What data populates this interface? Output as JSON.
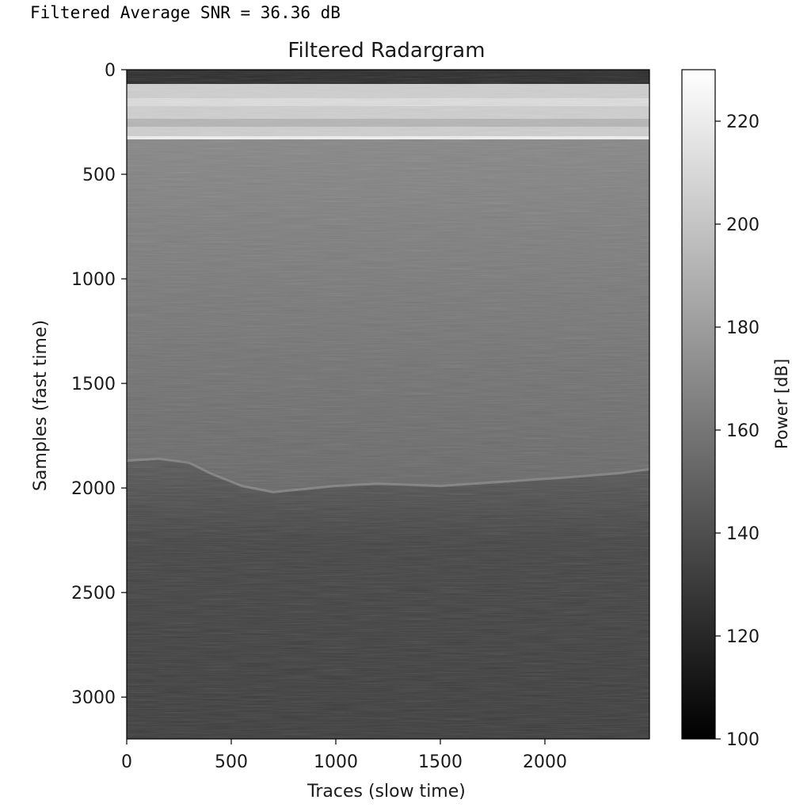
{
  "console": {
    "output_text": "Filtered Average SNR = 36.36 dB"
  },
  "chart_data": {
    "type": "heatmap",
    "title": "Filtered Radargram",
    "xlabel": "Traces (slow time)",
    "ylabel": "Samples (fast time)",
    "xlim": [
      0,
      2500
    ],
    "ylim": [
      3200,
      0
    ],
    "x_ticks": [
      0,
      500,
      1000,
      1500,
      2000
    ],
    "y_ticks": [
      0,
      500,
      1000,
      1500,
      2000,
      2500,
      3000
    ],
    "colormap": "gray",
    "colorbar": {
      "label": "Power [dB]",
      "range": [
        100,
        230
      ],
      "ticks": [
        100,
        120,
        140,
        160,
        180,
        200,
        220
      ]
    },
    "reflector_boundary": {
      "description": "bright basal interface",
      "points": [
        [
          0,
          1870
        ],
        [
          150,
          1860
        ],
        [
          300,
          1880
        ],
        [
          400,
          1930
        ],
        [
          550,
          1990
        ],
        [
          700,
          2020
        ],
        [
          800,
          2010
        ],
        [
          1000,
          1990
        ],
        [
          1200,
          1980
        ],
        [
          1500,
          1990
        ],
        [
          1800,
          1970
        ],
        [
          2100,
          1950
        ],
        [
          2350,
          1930
        ],
        [
          2500,
          1910
        ]
      ]
    },
    "grid": false
  }
}
